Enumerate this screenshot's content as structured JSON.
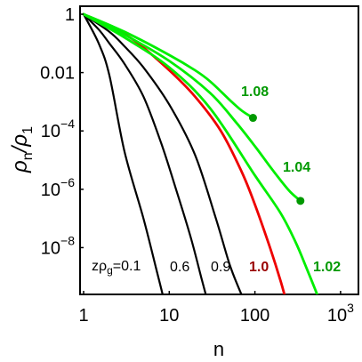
{
  "chart_data": {
    "type": "line",
    "xlabel": "n",
    "ylabel_main": "ρ",
    "ylabel_sub1": "n",
    "ylabel_mid": "/ρ",
    "ylabel_sub2": "1",
    "x_scale": "log",
    "y_scale": "log",
    "xlim": [
      1,
      1700
    ],
    "ylim": [
      1e-10,
      2
    ],
    "grid": false,
    "legend": "none",
    "x_ticks": [
      {
        "value": 1,
        "label": "1"
      },
      {
        "value": 10,
        "label": "10"
      },
      {
        "value": 100,
        "label": "100"
      },
      {
        "value": 1000,
        "label_base": "10",
        "label_exp": "3"
      }
    ],
    "y_ticks": [
      {
        "value": 1,
        "label": "1"
      },
      {
        "value": 0.01,
        "label": "0.01"
      },
      {
        "value": 0.0001,
        "label_base": "10",
        "label_exp": "−4"
      },
      {
        "value": 1e-06,
        "label_base": "10",
        "label_exp": "−6"
      },
      {
        "value": 1e-08,
        "label_base": "10",
        "label_exp": "−8"
      }
    ],
    "series": [
      {
        "label": "zρ",
        "label_sub": "g",
        "label_rest": "=0.1",
        "label_color": "#000000",
        "color": "#000000",
        "x": [
          1,
          1.5,
          2,
          3,
          5,
          7,
          9,
          10.5
        ],
        "y": [
          1,
          0.1,
          0.008,
          2e-05,
          1e-07,
          2e-09,
          1e-10,
          1e-11
        ],
        "endpoint": false
      },
      {
        "label": "0.6",
        "label_color": "#000000",
        "color": "#000000",
        "x": [
          1,
          1.5,
          2,
          3,
          5,
          8,
          12,
          18,
          24,
          29
        ],
        "y": [
          1,
          0.3,
          0.1,
          0.02,
          0.0015,
          4e-05,
          1e-06,
          2e-08,
          8e-10,
          1e-10
        ],
        "endpoint": false
      },
      {
        "label": "0.9",
        "label_color": "#000000",
        "color": "#000000",
        "x": [
          1,
          2,
          3,
          5,
          10,
          20,
          35,
          50,
          65,
          80
        ],
        "y": [
          1,
          0.25,
          0.08,
          0.015,
          0.0008,
          1.5e-05,
          1e-07,
          3e-09,
          4e-10,
          1e-10
        ],
        "endpoint": false
      },
      {
        "label": "1.0",
        "label_color": "#990000",
        "color": "#ee0000",
        "x": [
          1,
          2,
          4,
          10,
          20,
          40,
          70,
          100,
          150,
          200,
          240
        ],
        "y": [
          1,
          0.4,
          0.12,
          0.012,
          0.0015,
          0.0001,
          4e-06,
          3e-07,
          1e-08,
          7e-10,
          1e-10
        ],
        "endpoint": false
      },
      {
        "label": "1.02",
        "label_color": "#009900",
        "color": "#00ee00",
        "x": [
          1,
          3,
          10,
          30,
          100,
          200,
          300,
          400,
          500,
          600
        ],
        "y": [
          1,
          0.16,
          0.015,
          0.0006,
          3e-06,
          1.5e-07,
          1.5e-08,
          2e-09,
          4e-10,
          1e-10
        ],
        "endpoint": false
      },
      {
        "label": "1.04",
        "label_color": "#009900",
        "color": "#00ee00",
        "x": [
          1,
          3,
          10,
          30,
          60,
          100,
          150,
          200,
          260,
          340
        ],
        "y": [
          1,
          0.2,
          0.025,
          0.002,
          0.0002,
          3e-05,
          6e-06,
          2e-06,
          8e-07,
          4e-07
        ],
        "endpoint": true
      },
      {
        "label": "1.08",
        "label_color": "#009900",
        "color": "#00ee00",
        "x": [
          1,
          3,
          10,
          20,
          30,
          50,
          70,
          95
        ],
        "y": [
          1,
          0.25,
          0.04,
          0.012,
          0.005,
          0.0012,
          0.0005,
          0.00028
        ],
        "endpoint": true
      }
    ]
  }
}
